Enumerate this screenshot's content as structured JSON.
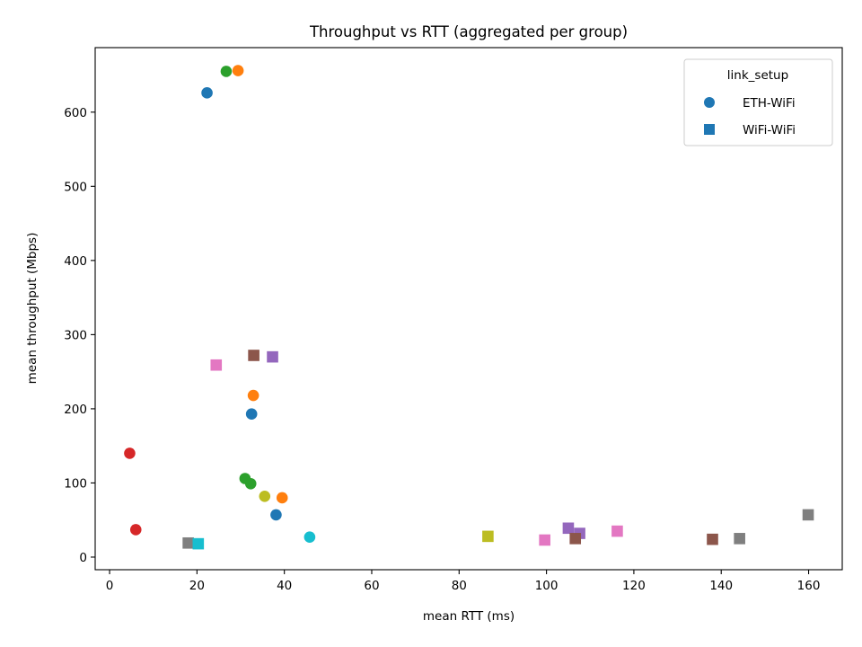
{
  "chart_data": {
    "type": "scatter",
    "title": "Throughput vs RTT (aggregated per group)",
    "xlabel": "mean RTT (ms)",
    "ylabel": "mean throughput (Mbps)",
    "xlim": [
      -3.3,
      167.7
    ],
    "ylim": [
      -17,
      687
    ],
    "xticks": [
      0,
      20,
      40,
      60,
      80,
      100,
      120,
      140,
      160
    ],
    "yticks": [
      0,
      100,
      200,
      300,
      400,
      500,
      600
    ],
    "grid": false,
    "legend": {
      "title": "link_setup",
      "placement": "top-right",
      "entries": [
        {
          "label": "ETH-WiFi",
          "marker": "circle",
          "color": "#1f77b4"
        },
        {
          "label": "WiFi-WiFi",
          "marker": "square",
          "color": "#1f77b4"
        }
      ]
    },
    "series": [
      {
        "marker": "circle",
        "points": [
          {
            "x": 22.3,
            "y": 626,
            "color": "#1f77b4"
          },
          {
            "x": 26.7,
            "y": 655,
            "color": "#2ca02c"
          },
          {
            "x": 29.4,
            "y": 656,
            "color": "#ff7f0e"
          },
          {
            "x": 32.9,
            "y": 218,
            "color": "#ff7f0e"
          },
          {
            "x": 32.5,
            "y": 193,
            "color": "#1f77b4"
          },
          {
            "x": 4.6,
            "y": 140,
            "color": "#d62728"
          },
          {
            "x": 31.0,
            "y": 106,
            "color": "#2ca02c"
          },
          {
            "x": 32.3,
            "y": 99,
            "color": "#2ca02c"
          },
          {
            "x": 35.5,
            "y": 82,
            "color": "#bcbd22"
          },
          {
            "x": 39.5,
            "y": 80,
            "color": "#ff7f0e"
          },
          {
            "x": 38.1,
            "y": 57,
            "color": "#1f77b4"
          },
          {
            "x": 6.0,
            "y": 37,
            "color": "#d62728"
          },
          {
            "x": 45.8,
            "y": 27,
            "color": "#17becf"
          }
        ]
      },
      {
        "marker": "square",
        "points": [
          {
            "x": 24.4,
            "y": 259,
            "color": "#e377c2"
          },
          {
            "x": 33.0,
            "y": 272,
            "color": "#8c564b"
          },
          {
            "x": 37.3,
            "y": 270,
            "color": "#9467bd"
          },
          {
            "x": 18.0,
            "y": 19,
            "color": "#7f7f7f"
          },
          {
            "x": 20.3,
            "y": 18,
            "color": "#17becf"
          },
          {
            "x": 86.6,
            "y": 28,
            "color": "#bcbd22"
          },
          {
            "x": 99.6,
            "y": 23,
            "color": "#e377c2"
          },
          {
            "x": 105.0,
            "y": 39,
            "color": "#9467bd"
          },
          {
            "x": 107.6,
            "y": 32,
            "color": "#9467bd"
          },
          {
            "x": 106.6,
            "y": 25,
            "color": "#8c564b"
          },
          {
            "x": 116.2,
            "y": 35,
            "color": "#e377c2"
          },
          {
            "x": 138.0,
            "y": 24,
            "color": "#8c564b"
          },
          {
            "x": 144.2,
            "y": 25,
            "color": "#7f7f7f"
          },
          {
            "x": 159.9,
            "y": 57,
            "color": "#7f7f7f"
          }
        ]
      }
    ]
  }
}
